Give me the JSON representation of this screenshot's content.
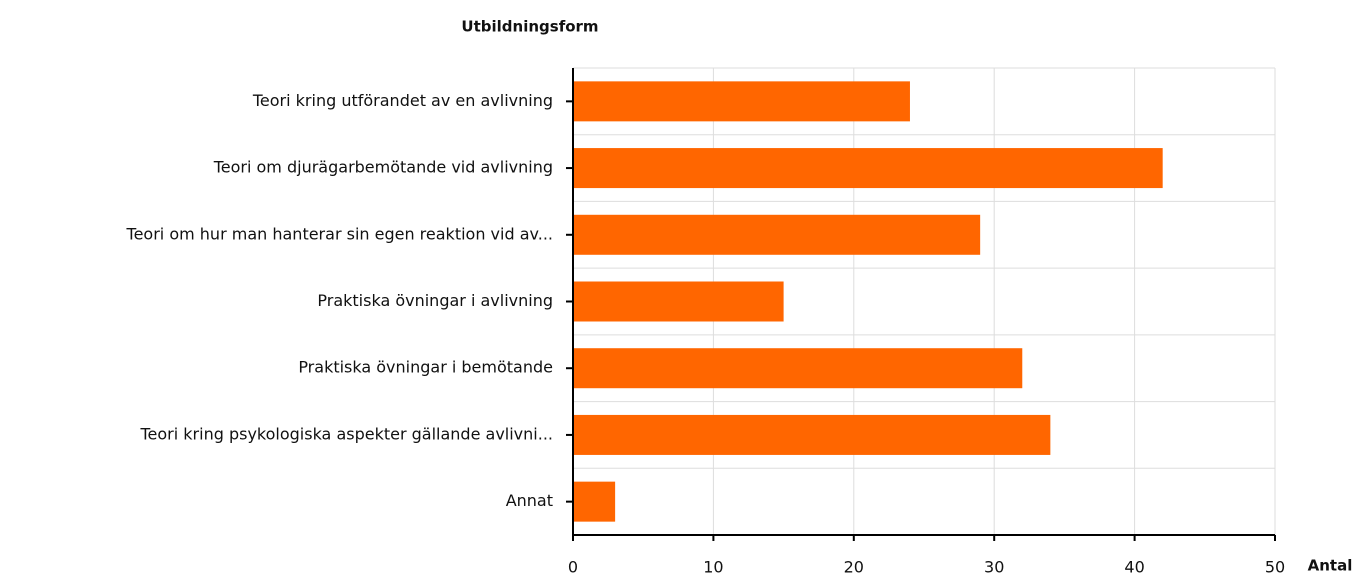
{
  "chart_data": {
    "type": "bar",
    "orientation": "horizontal",
    "title": "Utbildningsform",
    "xlabel": "Antal",
    "categories": [
      "Teori kring utförandet av en avlivning",
      "Teori om djurägarbemötande vid avlivning",
      "Teori om hur man hanterar sin egen reaktion vid av...",
      "Praktiska övningar i avlivning",
      "Praktiska övningar i bemötande",
      "Teori kring psykologiska aspekter gällande avlivni...",
      "Annat"
    ],
    "values": [
      24,
      42,
      29,
      15,
      32,
      34,
      3
    ],
    "color": "#ff6600",
    "xlim": [
      0,
      50
    ],
    "xticks": [
      0,
      10,
      20,
      30,
      40,
      50
    ],
    "grid": true
  }
}
